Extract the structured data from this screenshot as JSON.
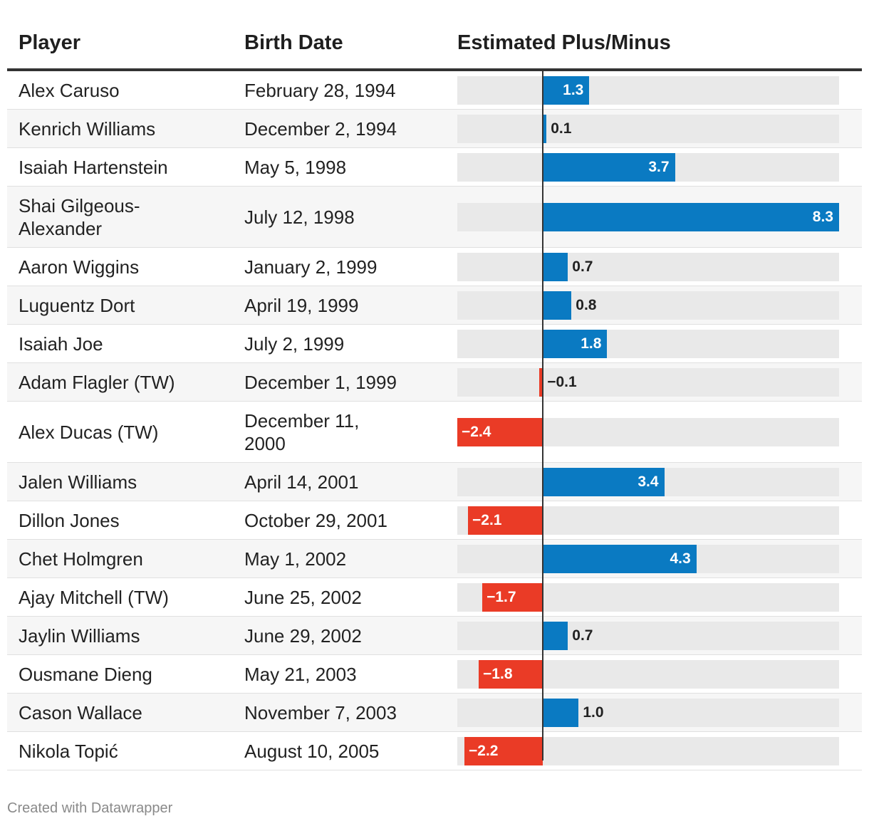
{
  "header": {
    "col_player": "Player",
    "col_birth": "Birth Date",
    "col_epm": "Estimated Plus/Minus"
  },
  "chart_data": {
    "type": "bar",
    "orientation": "horizontal",
    "xlim": [
      -2.4,
      8.3
    ],
    "columns": [
      "Player",
      "Birth Date",
      "Estimated Plus/Minus"
    ],
    "rows": [
      {
        "player": "Alex Caruso",
        "birth": "February 28, 1994",
        "value": 1.3,
        "label": "1.3"
      },
      {
        "player": "Kenrich Williams",
        "birth": "December 2, 1994",
        "value": 0.1,
        "label": "0.1"
      },
      {
        "player": "Isaiah Hartenstein",
        "birth": "May 5, 1998",
        "value": 3.7,
        "label": "3.7"
      },
      {
        "player": "Shai Gilgeous-Alexander",
        "birth": "July 12, 1998",
        "value": 8.3,
        "label": "8.3"
      },
      {
        "player": "Aaron Wiggins",
        "birth": "January 2, 1999",
        "value": 0.7,
        "label": "0.7"
      },
      {
        "player": "Luguentz Dort",
        "birth": "April 19, 1999",
        "value": 0.8,
        "label": "0.8"
      },
      {
        "player": "Isaiah Joe",
        "birth": "July 2, 1999",
        "value": 1.8,
        "label": "1.8"
      },
      {
        "player": "Adam Flagler (TW)",
        "birth": "December 1, 1999",
        "value": -0.1,
        "label": "−0.1"
      },
      {
        "player": "Alex Ducas (TW)",
        "birth": "December 11, 2000",
        "value": -2.4,
        "label": "−2.4"
      },
      {
        "player": "Jalen Williams",
        "birth": "April 14, 2001",
        "value": 3.4,
        "label": "3.4"
      },
      {
        "player": "Dillon Jones",
        "birth": "October 29, 2001",
        "value": -2.1,
        "label": "−2.1"
      },
      {
        "player": "Chet Holmgren",
        "birth": "May 1, 2002",
        "value": 4.3,
        "label": "4.3"
      },
      {
        "player": "Ajay Mitchell (TW)",
        "birth": "June 25, 2002",
        "value": -1.7,
        "label": "−1.7"
      },
      {
        "player": "Jaylin Williams",
        "birth": "June 29, 2002",
        "value": 0.7,
        "label": "0.7"
      },
      {
        "player": "Ousmane Dieng",
        "birth": "May 21, 2003",
        "value": -1.8,
        "label": "−1.8"
      },
      {
        "player": "Cason Wallace",
        "birth": "November 7, 2003",
        "value": 1.0,
        "label": "1.0"
      },
      {
        "player": "Nikola Topić",
        "birth": "August 10, 2005",
        "value": -2.2,
        "label": "−2.2"
      }
    ],
    "colors": {
      "positive": "#0a7ac2",
      "negative": "#ea3b26",
      "track": "#e9e9e9"
    }
  },
  "footer": {
    "credit": "Created with Datawrapper"
  }
}
